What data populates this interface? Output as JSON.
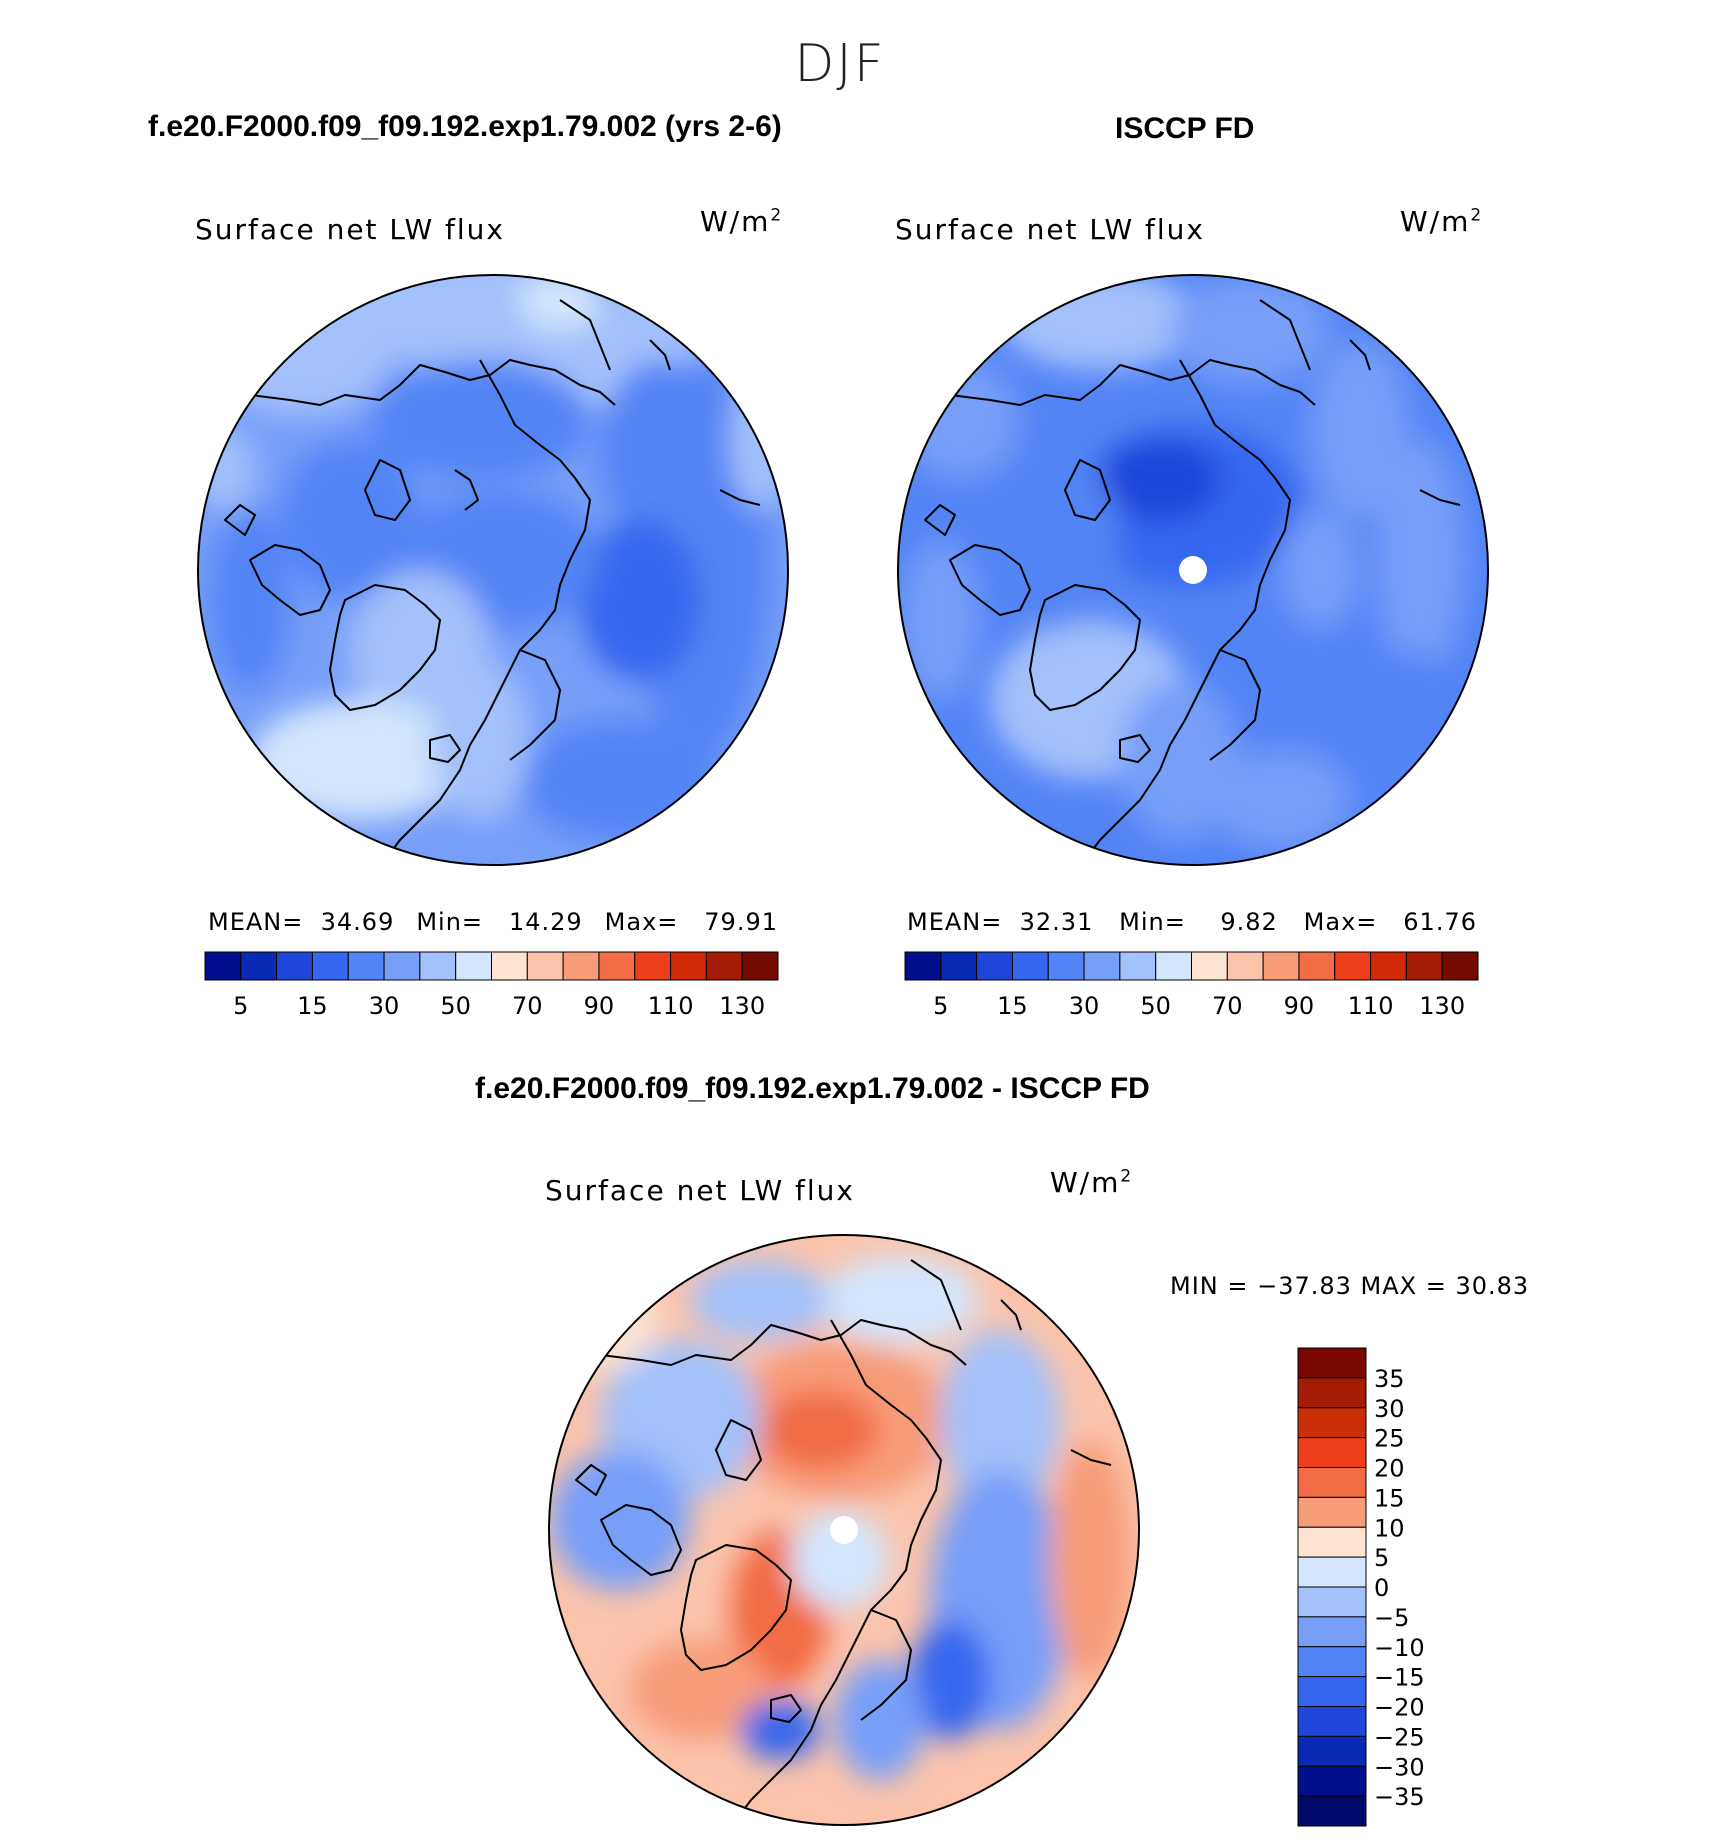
{
  "figure": {
    "season": "DJF",
    "colors": {
      "ocean_blue": "#6b95ee",
      "land_line": "#000000",
      "pole_hole": "#ffffff"
    }
  },
  "panels": {
    "model": {
      "case_title": "f.e20.F2000.f09_f09.192.exp1.79.002 (yrs 2-6)",
      "field": "Surface net LW flux",
      "units": "W/m",
      "units_sup": "2",
      "stats": {
        "mean_label": "MEAN=",
        "mean": "34.69",
        "min_label": "Min=",
        "min": "14.29",
        "max_label": "Max=",
        "max": "79.91"
      }
    },
    "obs": {
      "case_title": "ISCCP FD",
      "field": "Surface net LW flux",
      "units": "W/m",
      "units_sup": "2",
      "stats": {
        "mean_label": "MEAN=",
        "mean": "32.31",
        "min_label": "Min=",
        "min": "9.82",
        "max_label": "Max=",
        "max": "61.76"
      }
    },
    "diff": {
      "case_title": "f.e20.F2000.f09_f09.192.exp1.79.002 - ISCCP FD",
      "field": "Surface net LW flux",
      "units": "W/m",
      "units_sup": "2",
      "stats_text": "MIN = −37.83 MAX =   30.83"
    }
  },
  "chart_data": [
    {
      "type": "heatmap",
      "projection": "north polar stereographic",
      "title": "f.e20.F2000.f09_f09.192.exp1.79.002 (yrs 2-6)",
      "variable": "Surface net LW flux",
      "units": "W/m2",
      "mean": 34.69,
      "min": 14.29,
      "max": 79.91,
      "colorbar": {
        "orientation": "horizontal",
        "colors": [
          "#000f8c",
          "#0a2ab5",
          "#1e47d9",
          "#3566ef",
          "#5384f5",
          "#779ff8",
          "#a3c1fb",
          "#d4e6fd",
          "#fde4d2",
          "#fbc3aa",
          "#f79c78",
          "#f26c45",
          "#ec3e1b",
          "#d02a08",
          "#a51b04",
          "#730b00"
        ],
        "tick_labels": [
          "5",
          "15",
          "30",
          "50",
          "70",
          "90",
          "110",
          "130"
        ]
      }
    },
    {
      "type": "heatmap",
      "projection": "north polar stereographic",
      "title": "ISCCP FD",
      "variable": "Surface net LW flux",
      "units": "W/m2",
      "mean": 32.31,
      "min": 9.82,
      "max": 61.76,
      "colorbar": {
        "orientation": "horizontal",
        "colors": [
          "#000f8c",
          "#0a2ab5",
          "#1e47d9",
          "#3566ef",
          "#5384f5",
          "#779ff8",
          "#a3c1fb",
          "#d4e6fd",
          "#fde4d2",
          "#fbc3aa",
          "#f79c78",
          "#f26c45",
          "#ec3e1b",
          "#d02a08",
          "#a51b04",
          "#730b00"
        ],
        "tick_labels": [
          "5",
          "15",
          "30",
          "50",
          "70",
          "90",
          "110",
          "130"
        ]
      }
    },
    {
      "type": "heatmap",
      "projection": "north polar stereographic",
      "title": "f.e20.F2000.f09_f09.192.exp1.79.002 - ISCCP FD",
      "variable": "Surface net LW flux",
      "units": "W/m2",
      "min": -37.83,
      "max": 30.83,
      "colorbar": {
        "orientation": "vertical",
        "colors": [
          "#7a0600",
          "#a51c04",
          "#cc2e08",
          "#ec3e1b",
          "#f26c45",
          "#f79c78",
          "#fde4d2",
          "#d4e6fd",
          "#a3c1fb",
          "#779ff8",
          "#5384f5",
          "#3566ef",
          "#1e47d9",
          "#0a2ab5",
          "#000f8c",
          "#000a6a"
        ],
        "tick_labels": [
          "35",
          "30",
          "25",
          "20",
          "15",
          "10",
          "5",
          "0",
          "−5",
          "−10",
          "−15",
          "−20",
          "−25",
          "−30",
          "−35"
        ]
      }
    }
  ]
}
